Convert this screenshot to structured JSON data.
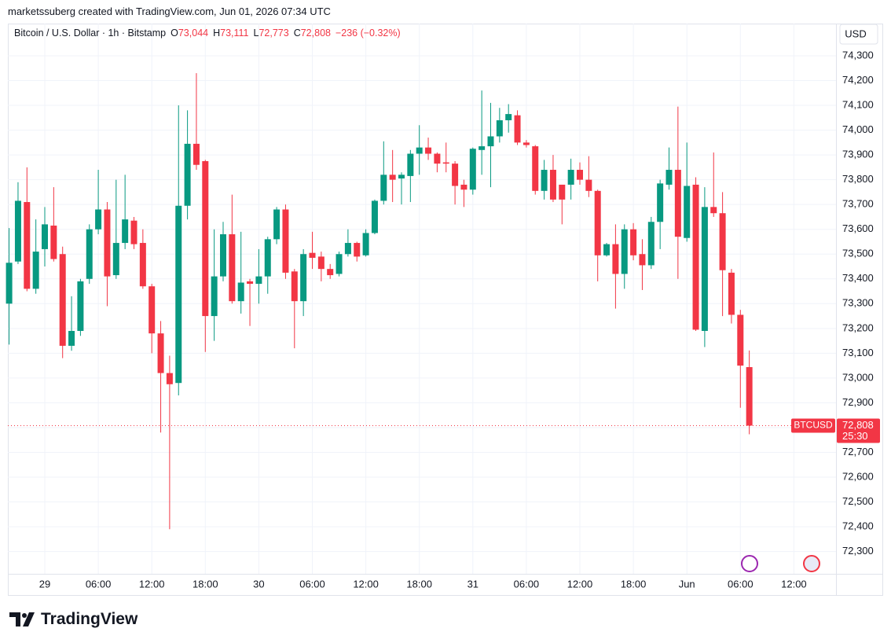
{
  "header": {
    "watermark": "marketssuberg created with TradingView.com, Jun 01, 2026 07:34 UTC",
    "symbol": "Bitcoin / U.S. Dollar · 1h · Bitstamp",
    "ohlc": [
      {
        "key": "O",
        "value": "73,044"
      },
      {
        "key": "H",
        "value": "73,111"
      },
      {
        "key": "L",
        "value": "72,773"
      },
      {
        "key": "C",
        "value": "72,808"
      }
    ],
    "change": "−236 (−0.32%)"
  },
  "logo": "TradingView",
  "chart_data": {
    "type": "candlestick",
    "currency": "USD",
    "up_color": "#089981",
    "down_color": "#f23645",
    "grid": true,
    "categories": [
      null,
      null,
      null,
      null,
      "29",
      null,
      null,
      null,
      null,
      null,
      "06:00",
      null,
      null,
      null,
      null,
      null,
      "12:00",
      null,
      null,
      null,
      null,
      null,
      "18:00",
      null,
      null,
      null,
      null,
      null,
      "30",
      null,
      null,
      null,
      null,
      null,
      "06:00",
      null,
      null,
      null,
      null,
      null,
      "12:00",
      null,
      null,
      null,
      null,
      null,
      "18:00",
      null,
      null,
      null,
      null,
      null,
      "31",
      null,
      null,
      null,
      null,
      null,
      "06:00",
      null,
      null,
      null,
      null,
      null,
      "12:00",
      null,
      null,
      null,
      null,
      null,
      "18:00",
      null,
      null,
      null,
      null,
      null,
      "Jun",
      null,
      null,
      null,
      null,
      null,
      "06:00",
      null,
      null,
      null,
      null,
      null,
      "12:00",
      null,
      null,
      null,
      null
    ],
    "open": [
      73300,
      73470,
      73710,
      73360,
      73520,
      73615,
      73500,
      73130,
      73190,
      73400,
      73600,
      73680,
      73415,
      73545,
      73635,
      73545,
      73370,
      73180,
      73020,
      72980,
      73695,
      73945,
      73875,
      73250,
      73410,
      73580,
      73310,
      73390,
      73380,
      73410,
      73560,
      73680,
      73430,
      73310,
      73505,
      73490,
      73440,
      73420,
      73500,
      73545,
      73495,
      73585,
      73715,
      73820,
      73805,
      73815,
      73905,
      73930,
      73905,
      73870,
      73865,
      73780,
      73760,
      73920,
      73935,
      73975,
      74040,
      74060,
      73950,
      73935,
      73755,
      73840,
      73780,
      73780,
      73840,
      73800,
      73755,
      73495,
      73540,
      73420,
      73600,
      73500,
      73455,
      73630,
      73780,
      73840,
      73565,
      73780,
      73190,
      73690,
      73665,
      73425,
      73255,
      73044,
      null,
      null,
      null,
      null,
      null,
      null,
      null,
      null,
      null
    ],
    "high": [
      73605,
      73790,
      73850,
      73640,
      73690,
      73770,
      73530,
      73330,
      73400,
      73620,
      73840,
      73710,
      73800,
      73820,
      73650,
      73600,
      73380,
      73230,
      73090,
      74100,
      74080,
      74230,
      73880,
      73600,
      73630,
      73740,
      73590,
      73400,
      73520,
      73570,
      73690,
      73700,
      73440,
      73520,
      73590,
      73510,
      73460,
      73510,
      73600,
      73550,
      73600,
      73720,
      73955,
      73920,
      73830,
      73920,
      74020,
      73970,
      73910,
      73950,
      73875,
      73800,
      73930,
      74160,
      74110,
      74090,
      74105,
      74080,
      73960,
      73940,
      73880,
      73900,
      73780,
      73885,
      73870,
      73895,
      73760,
      73545,
      73620,
      73620,
      73625,
      73560,
      73650,
      73800,
      73930,
      74095,
      73950,
      73810,
      73770,
      73910,
      73750,
      73440,
      73275,
      73111,
      null,
      null,
      null,
      null,
      null,
      null,
      null,
      null,
      null
    ],
    "low": [
      73135,
      73460,
      73350,
      73340,
      73450,
      73470,
      73080,
      73110,
      73170,
      73380,
      73580,
      73290,
      73400,
      73520,
      73520,
      73360,
      73100,
      72780,
      72390,
      72930,
      73640,
      73840,
      73105,
      73150,
      73390,
      73300,
      73260,
      73210,
      73300,
      73340,
      73540,
      73400,
      73120,
      73250,
      73440,
      73390,
      73400,
      73410,
      73490,
      73470,
      73490,
      73580,
      73700,
      73710,
      73700,
      73710,
      73820,
      73880,
      73830,
      73830,
      73700,
      73690,
      73740,
      73820,
      73770,
      73950,
      73990,
      73940,
      73930,
      73740,
      73720,
      73710,
      73620,
      73720,
      73780,
      73730,
      73390,
      73490,
      73280,
      73360,
      73475,
      73355,
      73440,
      73520,
      73760,
      73400,
      73550,
      73190,
      73125,
      73650,
      73250,
      73220,
      72880,
      72773,
      null,
      null,
      null,
      null,
      null,
      null,
      null,
      null,
      null
    ],
    "close": [
      73465,
      73715,
      73360,
      73510,
      73620,
      73480,
      73130,
      73190,
      73390,
      73600,
      73680,
      73410,
      73545,
      73640,
      73540,
      73370,
      73180,
      73020,
      72975,
      73695,
      73945,
      73860,
      73250,
      73410,
      73580,
      73310,
      73385,
      73380,
      73410,
      73560,
      73680,
      73425,
      73310,
      73500,
      73485,
      73440,
      73415,
      73500,
      73545,
      73490,
      73585,
      73715,
      73820,
      73800,
      73820,
      73905,
      73930,
      73905,
      73865,
      73865,
      73775,
      73760,
      73925,
      73935,
      73975,
      74040,
      74065,
      73950,
      73940,
      73755,
      73840,
      73720,
      73720,
      73840,
      73800,
      73755,
      73495,
      73540,
      73420,
      73600,
      73495,
      73455,
      73630,
      73785,
      73840,
      73570,
      73775,
      73195,
      73690,
      73665,
      73435,
      73255,
      73050,
      72808,
      null,
      null,
      null,
      null,
      null,
      null,
      null,
      null,
      null
    ],
    "ylim": [
      72210,
      74430
    ],
    "yticks": [
      {
        "value": 72300,
        "label": "72,300"
      },
      {
        "value": 72400,
        "label": "72,400"
      },
      {
        "value": 72500,
        "label": "72,500"
      },
      {
        "value": 72600,
        "label": "72,600"
      },
      {
        "value": 72700,
        "label": "72,700"
      },
      {
        "value": 72800,
        "label": "72,800"
      },
      {
        "value": 72900,
        "label": "72,900"
      },
      {
        "value": 73000,
        "label": "73,000"
      },
      {
        "value": 73100,
        "label": "73,100"
      },
      {
        "value": 73200,
        "label": "73,200"
      },
      {
        "value": 73300,
        "label": "73,300"
      },
      {
        "value": 73400,
        "label": "73,400"
      },
      {
        "value": 73500,
        "label": "73,500"
      },
      {
        "value": 73600,
        "label": "73,600"
      },
      {
        "value": 73700,
        "label": "73,700"
      },
      {
        "value": 73800,
        "label": "73,800"
      },
      {
        "value": 73900,
        "label": "73,900"
      },
      {
        "value": 74000,
        "label": "74,000"
      },
      {
        "value": 74100,
        "label": "74,100"
      },
      {
        "value": 74200,
        "label": "74,200"
      },
      {
        "value": 74300,
        "label": "74,300"
      }
    ],
    "last_price": {
      "name": "BTCUSD",
      "value": 72808,
      "value_label": "72,808",
      "countdown": "25:30"
    }
  }
}
